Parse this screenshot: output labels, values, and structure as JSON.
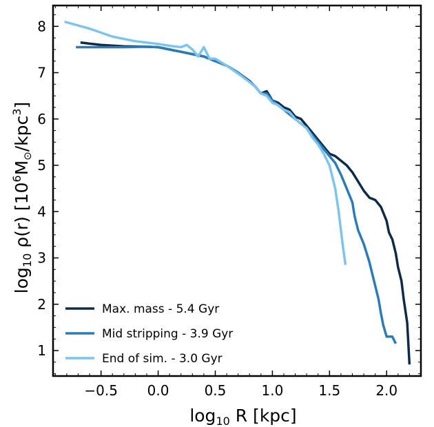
{
  "chart_data": {
    "type": "line",
    "xlabel": {
      "prefix": "log",
      "sub": "10",
      "rest": " R [kpc]"
    },
    "ylabel": {
      "prefix": "log",
      "sub": "10",
      "rho": " ρ(r) [10",
      "sup1": "6",
      "mid": "M",
      "odot": "⊙",
      "slash": "/kpc",
      "sup2": "3",
      "end": "]"
    },
    "xlim": [
      -0.92,
      2.3
    ],
    "ylim": [
      0.45,
      8.45
    ],
    "xticks": [
      -0.5,
      0.0,
      0.5,
      1.0,
      1.5,
      2.0
    ],
    "xtick_labels": [
      "−0.5",
      "0.0",
      "0.5",
      "1.0",
      "1.5",
      "2.0"
    ],
    "yticks": [
      1,
      2,
      3,
      4,
      5,
      6,
      7,
      8
    ],
    "ytick_labels": [
      "1",
      "2",
      "3",
      "4",
      "5",
      "6",
      "7",
      "8"
    ],
    "grid": false,
    "legend_position": "bottom-left",
    "series": [
      {
        "name": "Max. mass - 5.4 Gyr",
        "color": "#0d2a48",
        "x": [
          -0.68,
          -0.5,
          -0.3,
          -0.1,
          0.0,
          0.1,
          0.2,
          0.3,
          0.4,
          0.5,
          0.6,
          0.7,
          0.8,
          0.85,
          0.9,
          0.95,
          1.0,
          1.05,
          1.1,
          1.15,
          1.2,
          1.25,
          1.3,
          1.35,
          1.4,
          1.45,
          1.5,
          1.55,
          1.6,
          1.65,
          1.7,
          1.75,
          1.8,
          1.85,
          1.9,
          1.95,
          2.0,
          2.02,
          2.05,
          2.08,
          2.1,
          2.13,
          2.15,
          2.18,
          2.2
        ],
        "y": [
          7.65,
          7.6,
          7.57,
          7.56,
          7.55,
          7.5,
          7.45,
          7.4,
          7.35,
          7.25,
          7.15,
          7.0,
          6.82,
          6.7,
          6.55,
          6.6,
          6.4,
          6.35,
          6.25,
          6.2,
          6.05,
          6.0,
          5.85,
          5.7,
          5.55,
          5.4,
          5.25,
          5.2,
          5.1,
          5.0,
          4.85,
          4.65,
          4.45,
          4.3,
          4.25,
          4.1,
          3.8,
          3.55,
          3.4,
          3.1,
          2.8,
          2.5,
          2.1,
          1.6,
          0.7
        ]
      },
      {
        "name": "Mid stripping - 3.9 Gyr",
        "color": "#2b7bba",
        "x": [
          -0.72,
          -0.5,
          -0.3,
          -0.1,
          0.0,
          0.1,
          0.2,
          0.3,
          0.4,
          0.5,
          0.6,
          0.7,
          0.8,
          0.85,
          0.9,
          0.95,
          1.0,
          1.05,
          1.1,
          1.15,
          1.2,
          1.25,
          1.3,
          1.35,
          1.4,
          1.45,
          1.5,
          1.55,
          1.6,
          1.65,
          1.7,
          1.72,
          1.75,
          1.8,
          1.85,
          1.88,
          1.9,
          1.93,
          1.95,
          1.97,
          2.0,
          2.05,
          2.08
        ],
        "y": [
          7.55,
          7.55,
          7.55,
          7.56,
          7.55,
          7.5,
          7.45,
          7.4,
          7.35,
          7.25,
          7.15,
          7.0,
          6.8,
          6.7,
          6.55,
          6.55,
          6.4,
          6.3,
          6.2,
          6.1,
          6.0,
          5.9,
          5.8,
          5.65,
          5.5,
          5.35,
          5.2,
          5.05,
          4.8,
          4.5,
          4.2,
          3.9,
          3.6,
          3.3,
          2.9,
          2.6,
          2.4,
          2.1,
          1.8,
          1.55,
          1.3,
          1.3,
          1.15
        ]
      },
      {
        "name": "End of sim. - 3.0 Gyr",
        "color": "#7cc4ee",
        "x": [
          -0.82,
          -0.6,
          -0.4,
          -0.2,
          0.0,
          0.1,
          0.2,
          0.25,
          0.3,
          0.35,
          0.4,
          0.45,
          0.5,
          0.6,
          0.7,
          0.8,
          0.85,
          0.9,
          0.95,
          1.0,
          1.05,
          1.1,
          1.15,
          1.2,
          1.25,
          1.3,
          1.35,
          1.4,
          1.45,
          1.5,
          1.52,
          1.55,
          1.58,
          1.6,
          1.62,
          1.64
        ],
        "y": [
          8.1,
          7.95,
          7.78,
          7.68,
          7.62,
          7.58,
          7.55,
          7.6,
          7.5,
          7.35,
          7.55,
          7.3,
          7.3,
          7.15,
          6.98,
          6.8,
          6.7,
          6.55,
          6.5,
          6.35,
          6.3,
          6.2,
          6.15,
          6.0,
          5.9,
          5.8,
          5.6,
          5.45,
          5.25,
          5.0,
          4.8,
          4.5,
          4.0,
          3.6,
          3.2,
          2.85
        ]
      }
    ]
  }
}
